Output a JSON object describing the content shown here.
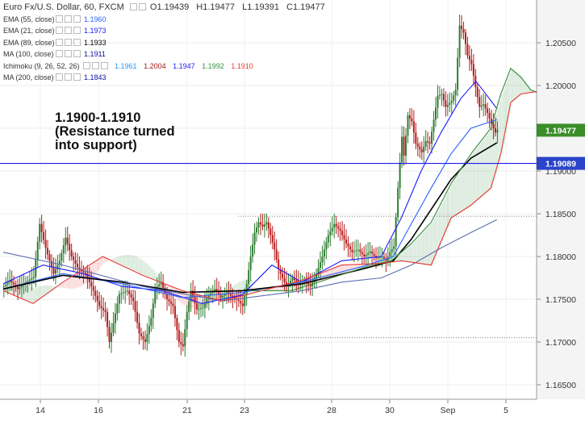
{
  "header": {
    "symbol": "Euro Fx/U.S. Dollar, 60, FXCM",
    "open_label": "O",
    "open": "1.19439",
    "high_label": "H",
    "high": "1.19477",
    "low_label": "L",
    "low": "1.19391",
    "close_label": "C",
    "close": "1.19477"
  },
  "indicators": [
    {
      "name": "EMA (55, close)",
      "values": [
        "1.1960"
      ],
      "colors": [
        "#2962ff"
      ]
    },
    {
      "name": "EMA (21, close)",
      "values": [
        "1.1973"
      ],
      "colors": [
        "#1a1aff"
      ]
    },
    {
      "name": "EMA (89, close)",
      "values": [
        "1.1933"
      ],
      "colors": [
        "#000000"
      ]
    },
    {
      "name": "MA (100, close)",
      "values": [
        "1.1911"
      ],
      "colors": [
        "#0d0d9e"
      ]
    },
    {
      "name": "Ichimoku (9, 26, 52, 26)",
      "values": [
        "1.1961",
        "1.2004",
        "1.1947",
        "1.1992",
        "1.1910"
      ],
      "colors": [
        "#2196f3",
        "#991515",
        "#1a1aff",
        "#388e3c",
        "#e53935"
      ]
    },
    {
      "name": "MA (200, close)",
      "values": [
        "1.1843"
      ],
      "colors": [
        "#0d0d9e"
      ]
    }
  ],
  "annotation": [
    "1.1900-1.1910",
    "(Resistance turned",
    "into support)"
  ],
  "chart_data": {
    "type": "candlestick",
    "y_ticks": [
      "1.20500",
      "1.20000",
      "1.19500",
      "1.19000",
      "1.18500",
      "1.18000",
      "1.17500",
      "1.17000",
      "1.16500"
    ],
    "ylim": [
      1.1633,
      1.21
    ],
    "x_ticks": [
      "14",
      "16",
      "21",
      "23",
      "28",
      "30",
      "Sep",
      "5"
    ],
    "current_price": "1.19477",
    "horizontal_line": "1.19089",
    "dotted_levels": [
      1.1847,
      1.1705
    ],
    "price_path": [
      [
        0,
        1.1765
      ],
      [
        6,
        1.1772
      ],
      [
        14,
        1.1762
      ],
      [
        22,
        1.177
      ],
      [
        30,
        1.1776
      ],
      [
        36,
        1.1838
      ],
      [
        42,
        1.181
      ],
      [
        50,
        1.178
      ],
      [
        56,
        1.1795
      ],
      [
        62,
        1.1822
      ],
      [
        68,
        1.18
      ],
      [
        75,
        1.1785
      ],
      [
        82,
        1.178
      ],
      [
        90,
        1.176
      ],
      [
        96,
        1.1742
      ],
      [
        102,
        1.1735
      ],
      [
        106,
        1.17
      ],
      [
        110,
        1.1722
      ],
      [
        116,
        1.1756
      ],
      [
        124,
        1.176
      ],
      [
        130,
        1.1748
      ],
      [
        136,
        1.171
      ],
      [
        142,
        1.17
      ],
      [
        148,
        1.1728
      ],
      [
        152,
        1.1762
      ],
      [
        158,
        1.177
      ],
      [
        164,
        1.175
      ],
      [
        170,
        1.1742
      ],
      [
        176,
        1.17
      ],
      [
        180,
        1.1695
      ],
      [
        184,
        1.1735
      ],
      [
        188,
        1.176
      ],
      [
        194,
        1.1738
      ],
      [
        200,
        1.174
      ],
      [
        206,
        1.1755
      ],
      [
        212,
        1.1762
      ],
      [
        218,
        1.1752
      ],
      [
        224,
        1.1758
      ],
      [
        230,
        1.1752
      ],
      [
        236,
        1.1748
      ],
      [
        240,
        1.1742
      ],
      [
        244,
        1.1768
      ],
      [
        248,
        1.18
      ],
      [
        252,
        1.1828
      ],
      [
        256,
        1.184
      ],
      [
        260,
        1.1835
      ],
      [
        264,
        1.184
      ],
      [
        268,
        1.1825
      ],
      [
        272,
        1.1808
      ],
      [
        276,
        1.1785
      ],
      [
        280,
        1.1775
      ],
      [
        284,
        1.1765
      ],
      [
        290,
        1.1775
      ],
      [
        296,
        1.1768
      ],
      [
        302,
        1.1772
      ],
      [
        308,
        1.1765
      ],
      [
        314,
        1.178
      ],
      [
        320,
        1.18
      ],
      [
        326,
        1.1825
      ],
      [
        332,
        1.1838
      ],
      [
        338,
        1.183
      ],
      [
        344,
        1.1815
      ],
      [
        350,
        1.1805
      ],
      [
        356,
        1.1808
      ],
      [
        362,
        1.18
      ],
      [
        368,
        1.1806
      ],
      [
        374,
        1.1798
      ],
      [
        380,
        1.18
      ],
      [
        384,
        1.1795
      ],
      [
        388,
        1.1805
      ],
      [
        392,
        1.1812
      ],
      [
        396,
        1.188
      ],
      [
        400,
        1.194
      ],
      [
        402,
        1.1918
      ],
      [
        406,
        1.1965
      ],
      [
        410,
        1.1958
      ],
      [
        414,
        1.1932
      ],
      [
        420,
        1.1922
      ],
      [
        424,
        1.1935
      ],
      [
        428,
        1.1932
      ],
      [
        432,
        1.196
      ],
      [
        436,
        1.1988
      ],
      [
        440,
        1.199
      ],
      [
        444,
        1.1975
      ],
      [
        450,
        1.1982
      ],
      [
        454,
        1.1995
      ],
      [
        458,
        1.207
      ],
      [
        462,
        1.2062
      ],
      [
        466,
        1.2035
      ],
      [
        470,
        1.2025
      ],
      [
        474,
        1.1998
      ],
      [
        478,
        1.1975
      ],
      [
        482,
        1.1978
      ],
      [
        486,
        1.1968
      ],
      [
        490,
        1.1955
      ],
      [
        494,
        1.1945
      ],
      [
        496,
        1.1948
      ]
    ],
    "series_lines": [
      {
        "name": "EMA (21, close)",
        "color": "#1a1aff",
        "points": [
          [
            0,
            1.1768
          ],
          [
            40,
            1.179
          ],
          [
            80,
            1.178
          ],
          [
            120,
            1.1765
          ],
          [
            160,
            1.176
          ],
          [
            200,
            1.1745
          ],
          [
            240,
            1.1755
          ],
          [
            270,
            1.179
          ],
          [
            300,
            1.177
          ],
          [
            340,
            1.1795
          ],
          [
            380,
            1.18
          ],
          [
            400,
            1.1845
          ],
          [
            420,
            1.19
          ],
          [
            440,
            1.1945
          ],
          [
            460,
            1.1985
          ],
          [
            475,
            1.2005
          ],
          [
            485,
            1.199
          ],
          [
            496,
            1.1973
          ]
        ]
      },
      {
        "name": "EMA (55, close)",
        "color": "#2962ff",
        "points": [
          [
            0,
            1.1762
          ],
          [
            60,
            1.178
          ],
          [
            120,
            1.1768
          ],
          [
            180,
            1.1752
          ],
          [
            240,
            1.1758
          ],
          [
            300,
            1.177
          ],
          [
            360,
            1.1788
          ],
          [
            392,
            1.18
          ],
          [
            410,
            1.1838
          ],
          [
            430,
            1.188
          ],
          [
            450,
            1.192
          ],
          [
            470,
            1.195
          ],
          [
            496,
            1.196
          ]
        ]
      },
      {
        "name": "EMA (89, close)",
        "color": "#000000",
        "points": [
          [
            0,
            1.1762
          ],
          [
            60,
            1.1778
          ],
          [
            120,
            1.177
          ],
          [
            180,
            1.1758
          ],
          [
            240,
            1.176
          ],
          [
            300,
            1.1768
          ],
          [
            360,
            1.1785
          ],
          [
            392,
            1.1795
          ],
          [
            410,
            1.182
          ],
          [
            430,
            1.1855
          ],
          [
            450,
            1.189
          ],
          [
            470,
            1.1915
          ],
          [
            496,
            1.1933
          ]
        ]
      },
      {
        "name": "MA (200, close)",
        "color": "#5b6fb0",
        "points": [
          [
            0,
            1.1805
          ],
          [
            60,
            1.179
          ],
          [
            140,
            1.1765
          ],
          [
            220,
            1.1748
          ],
          [
            300,
            1.176
          ],
          [
            340,
            1.177
          ],
          [
            380,
            1.1775
          ],
          [
            410,
            1.179
          ],
          [
            440,
            1.181
          ],
          [
            470,
            1.1828
          ],
          [
            496,
            1.1843
          ]
        ]
      },
      {
        "name": "Ichimoku Lagging",
        "color": "#388e3c",
        "points": [
          [
            250,
            1.176
          ],
          [
            290,
            1.176
          ],
          [
            330,
            1.1775
          ],
          [
            370,
            1.179
          ],
          [
            390,
            1.1795
          ],
          [
            410,
            1.1815
          ],
          [
            430,
            1.184
          ],
          [
            450,
            1.1885
          ],
          [
            470,
            1.192
          ],
          [
            490,
            1.195
          ],
          [
            500,
            1.199
          ],
          [
            510,
            1.202
          ],
          [
            520,
            1.201
          ],
          [
            530,
            1.1995
          ],
          [
            536,
            1.1992
          ]
        ]
      },
      {
        "name": "Ichimoku Span B",
        "color": "#e53935",
        "points": [
          [
            0,
            1.176
          ],
          [
            30,
            1.1745
          ],
          [
            60,
            1.177
          ],
          [
            100,
            1.18
          ],
          [
            140,
            1.1778
          ],
          [
            180,
            1.176
          ],
          [
            220,
            1.1748
          ],
          [
            260,
            1.176
          ],
          [
            300,
            1.1772
          ],
          [
            340,
            1.179
          ],
          [
            380,
            1.1792
          ],
          [
            400,
            1.1795
          ],
          [
            430,
            1.179
          ],
          [
            450,
            1.1845
          ],
          [
            470,
            1.186
          ],
          [
            490,
            1.188
          ],
          [
            500,
            1.192
          ],
          [
            510,
            1.198
          ],
          [
            520,
            1.199
          ],
          [
            536,
            1.1993
          ]
        ]
      }
    ]
  },
  "axis_ranges": {
    "x_visible": [
      0,
      665
    ],
    "y_visible": [
      1.1633,
      1.21
    ]
  },
  "colors": {
    "axis_bg": "#f4f4f4",
    "up": "#2e7d32",
    "down": "#b71c1c",
    "line_blue": "#1a1aff",
    "price_tag": "#3a8d29",
    "level_tag": "#2a44c9"
  }
}
